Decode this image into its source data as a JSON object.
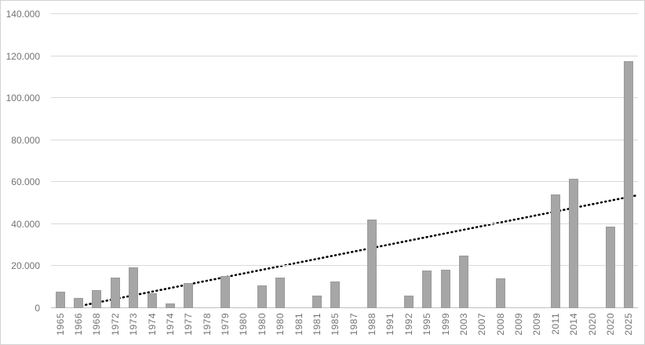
{
  "chart_data": {
    "type": "bar",
    "title": "",
    "xlabel": "",
    "ylabel": "",
    "categories": [
      "1965",
      "1966",
      "1968",
      "1972",
      "1973",
      "1974",
      "1974",
      "1977",
      "1978",
      "1979",
      "1980",
      "1980",
      "1980",
      "1981",
      "1981",
      "1985",
      "1987",
      "1988",
      "1991",
      "1992",
      "1995",
      "1999",
      "2003",
      "2007",
      "2008",
      "2009",
      "2009",
      "2011",
      "2014",
      "2020",
      "2020",
      "2025"
    ],
    "values": [
      8000,
      5000,
      8700,
      14500,
      19500,
      7000,
      2300,
      12000,
      0,
      15400,
      0,
      10700,
      14700,
      0,
      6100,
      12800,
      0,
      42300,
      0,
      6000,
      18000,
      18400,
      25000,
      0,
      14100,
      0,
      0,
      54000,
      61700,
      0,
      39000,
      117500
    ],
    "ylim": [
      0,
      140000
    ],
    "ytick_step": 20000,
    "ytick_labels": [
      "0",
      "20.000",
      "40.000",
      "60.000",
      "80.000",
      "100.000",
      "120.000",
      "140.000"
    ],
    "grid": "horizontal",
    "legend": "none",
    "trendline": {
      "style": "dotted",
      "x1_frac": 0.045,
      "v1": 800,
      "x2_frac": 1.0,
      "v2": 53800
    },
    "colors": {
      "bar": "#a6a6a6",
      "bar_edge": "#9b9b9b",
      "gridline": "#d9d9d9",
      "axis_line": "#bfbfbf",
      "tick_label": "#737373",
      "trendline": "#000000",
      "frame_border": "#d3d3d3"
    }
  }
}
